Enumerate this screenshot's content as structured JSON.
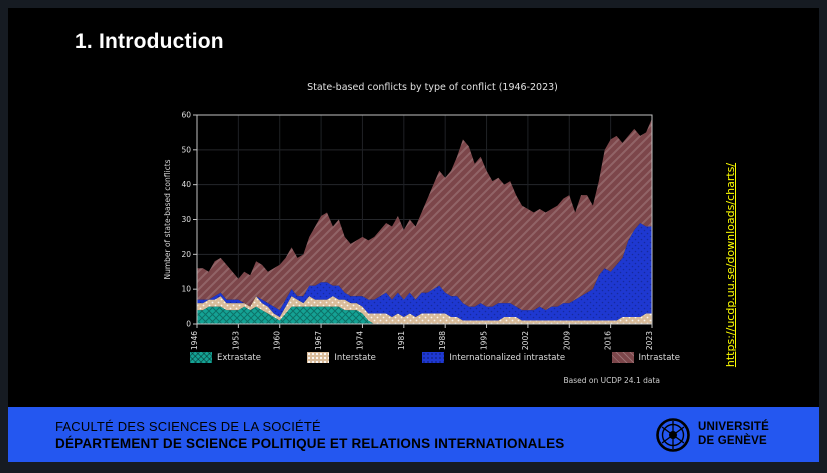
{
  "slide": {
    "title": "1. Introduction"
  },
  "side_link": {
    "text": "https://ucdp.uu.se/downloads/charts/",
    "color": "#ffff00"
  },
  "footer": {
    "line1": "FACULTÉ DES SCIENCES DE LA SOCIÉTÉ",
    "line2": "DÉPARTEMENT DE SCIENCE POLITIQUE ET RELATIONS INTERNATIONALES",
    "background": "#2457f0",
    "logo": {
      "line1": "UNIVERSITÉ",
      "line2": "DE GENÈVE",
      "icon": "unige-seal-icon"
    }
  },
  "chart_data": {
    "type": "area",
    "stacked": true,
    "title": "State-based conflicts by type of conflict (1946-2023)",
    "xlabel": "",
    "ylabel": "Number of state-based conflicts",
    "ylim": [
      0,
      60
    ],
    "yticks": [
      0,
      10,
      20,
      30,
      40,
      50,
      60
    ],
    "x_start": 1946,
    "x_end": 2023,
    "xticks": [
      1946,
      1953,
      1960,
      1967,
      1974,
      1981,
      1988,
      1995,
      2002,
      2009,
      2016,
      2023
    ],
    "grid": true,
    "legend_position": "bottom",
    "source_note": "Based on UCDP 24.1 data",
    "series": [
      {
        "name": "Extrastate",
        "color": "#14a294",
        "pattern": "crosshatch",
        "values": [
          4,
          4,
          5,
          5,
          5,
          4,
          4,
          4,
          5,
          4,
          5,
          4,
          3,
          2,
          1,
          3,
          5,
          5,
          5,
          5,
          5,
          5,
          5,
          5,
          5,
          4,
          4,
          4,
          3,
          1,
          0,
          0,
          0,
          0,
          0,
          0,
          0,
          0,
          0,
          0,
          0,
          0,
          0,
          0,
          0,
          0,
          0,
          0,
          0,
          0,
          0,
          0,
          0,
          0,
          0,
          0,
          0,
          0,
          0,
          0,
          0,
          0,
          0,
          0,
          0,
          0,
          0,
          0,
          0,
          0,
          0,
          0,
          0,
          0,
          0,
          0,
          0,
          0
        ]
      },
      {
        "name": "Interstate",
        "color": "#d9bc9a",
        "pattern": "dots-light",
        "values": [
          2,
          2,
          2,
          2,
          3,
          2,
          2,
          2,
          1,
          1,
          3,
          2,
          2,
          1,
          1,
          2,
          3,
          2,
          1,
          3,
          2,
          2,
          2,
          3,
          2,
          3,
          2,
          2,
          2,
          2,
          3,
          3,
          3,
          2,
          3,
          2,
          3,
          2,
          3,
          3,
          3,
          3,
          3,
          2,
          2,
          1,
          1,
          1,
          1,
          1,
          1,
          1,
          2,
          2,
          2,
          1,
          1,
          1,
          1,
          1,
          1,
          1,
          1,
          1,
          1,
          1,
          1,
          1,
          1,
          1,
          1,
          1,
          2,
          2,
          2,
          2,
          3,
          3
        ]
      },
      {
        "name": "Internationalized intrastate",
        "color": "#1e38d1",
        "pattern": "dots-dark",
        "values": [
          1,
          1,
          0,
          1,
          1,
          1,
          1,
          1,
          0,
          0,
          0,
          1,
          1,
          2,
          2,
          2,
          2,
          1,
          2,
          3,
          4,
          5,
          5,
          3,
          4,
          2,
          2,
          2,
          3,
          4,
          4,
          5,
          6,
          5,
          6,
          5,
          6,
          5,
          6,
          6,
          7,
          8,
          6,
          6,
          6,
          5,
          4,
          4,
          5,
          4,
          4,
          5,
          4,
          4,
          3,
          3,
          3,
          3,
          4,
          3,
          4,
          4,
          5,
          5,
          6,
          7,
          8,
          9,
          13,
          15,
          14,
          16,
          17,
          22,
          25,
          27,
          25,
          25
        ]
      },
      {
        "name": "Intrastate",
        "color": "#7c464a",
        "pattern": "diagonal-lines",
        "values": [
          9,
          9,
          8,
          10,
          10,
          10,
          8,
          6,
          9,
          9,
          10,
          10,
          9,
          11,
          13,
          12,
          12,
          11,
          12,
          14,
          17,
          19,
          20,
          17,
          19,
          16,
          15,
          16,
          17,
          17,
          18,
          19,
          20,
          21,
          22,
          20,
          21,
          21,
          23,
          27,
          30,
          33,
          33,
          36,
          40,
          47,
          46,
          41,
          42,
          39,
          36,
          36,
          34,
          35,
          32,
          30,
          29,
          28,
          28,
          28,
          28,
          29,
          30,
          31,
          25,
          29,
          28,
          24,
          27,
          34,
          38,
          37,
          33,
          30,
          29,
          25,
          27,
          31
        ]
      }
    ]
  }
}
